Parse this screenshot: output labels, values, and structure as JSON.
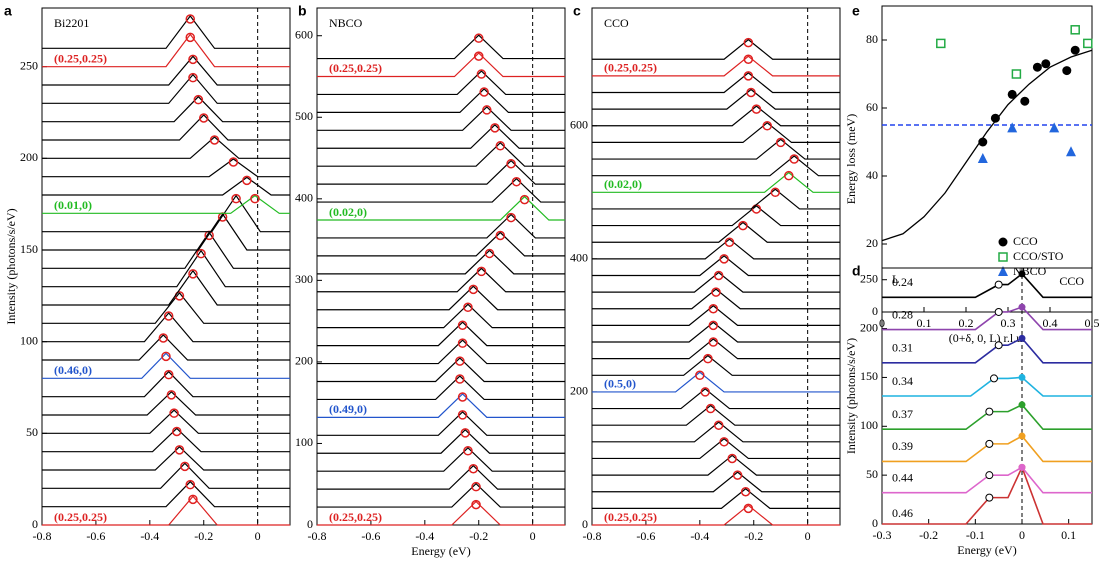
{
  "chart_data": [
    {
      "panel": "a",
      "type": "waterfall",
      "title": "Bi2201",
      "ylabel": "Intensity (photons/s/eV)",
      "xlim": [
        -0.8,
        0.12
      ],
      "ylim": [
        0,
        282
      ],
      "xticks": [
        -0.8,
        -0.6,
        -0.4,
        -0.2,
        0
      ],
      "yticks": [
        0,
        50,
        100,
        150,
        200,
        250
      ],
      "vline": 0,
      "traces": {
        "offsets": [
          0,
          10,
          20,
          30,
          40,
          50,
          60,
          70,
          80,
          90,
          100,
          110,
          120,
          130,
          140,
          150,
          160,
          170,
          180,
          190,
          200,
          210,
          220,
          230,
          240,
          250,
          260
        ],
        "peak_energy": [
          -0.24,
          -0.25,
          -0.27,
          -0.29,
          -0.3,
          -0.31,
          -0.32,
          -0.33,
          -0.34,
          -0.35,
          -0.33,
          -0.29,
          -0.24,
          -0.21,
          -0.18,
          -0.13,
          -0.08,
          -0.01,
          -0.04,
          -0.09,
          -0.16,
          -0.2,
          -0.22,
          -0.24,
          -0.24,
          -0.25,
          -0.25
        ],
        "peak_intensity": [
          14,
          22,
          32,
          41,
          51,
          61,
          71,
          82,
          92,
          102,
          114,
          125,
          137,
          148,
          158,
          168,
          178,
          178,
          188,
          198,
          210,
          222,
          232,
          244,
          254,
          266,
          276
        ],
        "colors": [
          "#dd2222",
          "#000000",
          "#000000",
          "#000000",
          "#000000",
          "#000000",
          "#000000",
          "#000000",
          "#2255cc",
          "#000000",
          "#000000",
          "#000000",
          "#000000",
          "#000000",
          "#000000",
          "#000000",
          "#000000",
          "#22bb22",
          "#000000",
          "#000000",
          "#000000",
          "#000000",
          "#000000",
          "#000000",
          "#000000",
          "#dd2222",
          "#000000"
        ],
        "labels": [
          "(0.25,0.25)",
          null,
          null,
          null,
          null,
          null,
          null,
          null,
          "(0.46,0)",
          null,
          null,
          null,
          null,
          null,
          null,
          null,
          null,
          "(0.01,0)",
          null,
          null,
          null,
          null,
          null,
          null,
          null,
          "(0.25,0.25)",
          null
        ]
      }
    },
    {
      "panel": "b",
      "type": "waterfall",
      "title": "NBCO",
      "xlabel": "Energy (eV)",
      "xlim": [
        -0.8,
        0.12
      ],
      "ylim": [
        0,
        634
      ],
      "xticks": [
        -0.8,
        -0.6,
        -0.4,
        -0.2,
        0
      ],
      "yticks": [
        0,
        100,
        200,
        300,
        400,
        500,
        600
      ],
      "vline": 0,
      "traces": {
        "offsets": [
          0,
          22,
          44,
          66,
          88,
          110,
          132,
          154,
          176,
          198,
          220,
          242,
          264,
          286,
          308,
          330,
          352,
          374,
          396,
          418,
          440,
          462,
          484,
          506,
          528,
          550,
          572
        ],
        "peak_energy": [
          -0.21,
          -0.21,
          -0.22,
          -0.24,
          -0.25,
          -0.26,
          -0.26,
          -0.27,
          -0.27,
          -0.26,
          -0.26,
          -0.24,
          -0.22,
          -0.19,
          -0.16,
          -0.12,
          -0.08,
          -0.03,
          -0.06,
          -0.08,
          -0.12,
          -0.14,
          -0.17,
          -0.18,
          -0.19,
          -0.2,
          -0.2
        ],
        "peak_intensity": [
          25,
          47,
          69,
          91,
          113,
          135,
          157,
          179,
          201,
          223,
          245,
          267,
          289,
          311,
          333,
          355,
          377,
          399,
          421,
          443,
          465,
          487,
          509,
          531,
          553,
          575,
          597
        ],
        "colors": [
          "#dd2222",
          "#000000",
          "#000000",
          "#000000",
          "#000000",
          "#000000",
          "#2255cc",
          "#000000",
          "#000000",
          "#000000",
          "#000000",
          "#000000",
          "#000000",
          "#000000",
          "#000000",
          "#000000",
          "#000000",
          "#22bb22",
          "#000000",
          "#000000",
          "#000000",
          "#000000",
          "#000000",
          "#000000",
          "#000000",
          "#dd2222",
          "#000000"
        ],
        "labels": [
          "(0.25,0.25)",
          null,
          null,
          null,
          null,
          null,
          "(0.49,0)",
          null,
          null,
          null,
          null,
          null,
          null,
          null,
          null,
          null,
          null,
          "(0.02,0)",
          null,
          null,
          null,
          null,
          null,
          null,
          null,
          "(0.25,0.25)",
          null
        ]
      }
    },
    {
      "panel": "c",
      "type": "waterfall",
      "title": "CCO",
      "xlim": [
        -0.8,
        0.12
      ],
      "ylim": [
        0,
        777
      ],
      "xticks": [
        -0.8,
        -0.6,
        -0.4,
        -0.2,
        0
      ],
      "yticks": [
        0,
        200,
        400,
        600
      ],
      "vline": 0,
      "traces": {
        "offsets": [
          0,
          25,
          50,
          75,
          100,
          125,
          150,
          175,
          200,
          225,
          250,
          275,
          300,
          325,
          350,
          375,
          400,
          425,
          450,
          475,
          500,
          525,
          550,
          575,
          600,
          625,
          650,
          675,
          700
        ],
        "peak_energy": [
          -0.22,
          -0.23,
          -0.26,
          -0.28,
          -0.31,
          -0.33,
          -0.36,
          -0.38,
          -0.4,
          -0.37,
          -0.35,
          -0.35,
          -0.35,
          -0.34,
          -0.33,
          -0.31,
          -0.29,
          -0.24,
          -0.19,
          -0.12,
          -0.07,
          -0.05,
          -0.1,
          -0.15,
          -0.19,
          -0.21,
          -0.22,
          -0.22,
          -0.22
        ],
        "peak_intensity": [
          25,
          50,
          75,
          100,
          125,
          150,
          175,
          200,
          225,
          250,
          275,
          300,
          325,
          350,
          375,
          400,
          425,
          450,
          475,
          500,
          525,
          550,
          575,
          600,
          625,
          650,
          675,
          700,
          725
        ],
        "colors": [
          "#dd2222",
          "#000000",
          "#000000",
          "#000000",
          "#000000",
          "#000000",
          "#000000",
          "#000000",
          "#2255cc",
          "#000000",
          "#000000",
          "#000000",
          "#000000",
          "#000000",
          "#000000",
          "#000000",
          "#000000",
          "#000000",
          "#000000",
          "#000000",
          "#22bb22",
          "#000000",
          "#000000",
          "#000000",
          "#000000",
          "#000000",
          "#000000",
          "#dd2222",
          "#000000"
        ],
        "labels": [
          "(0.25,0.25)",
          null,
          null,
          null,
          null,
          null,
          null,
          null,
          "(0.5,0)",
          null,
          null,
          null,
          null,
          null,
          null,
          null,
          null,
          null,
          null,
          null,
          "(0.02,0)",
          null,
          null,
          null,
          null,
          null,
          null,
          "(0.25,0.25)",
          null
        ]
      }
    },
    {
      "panel": "e",
      "type": "scatter",
      "xlabel": "(0+δ, 0, L) r.l.u.",
      "ylabel": "Energy loss (meV)",
      "xlim": [
        0,
        0.5
      ],
      "ylim": [
        0,
        90
      ],
      "xticks": [
        0,
        0.1,
        0.2,
        0.3,
        0.4,
        0.5
      ],
      "yticks": [
        0,
        20,
        40,
        60,
        80
      ],
      "hline": 55,
      "series": [
        {
          "name": "CCO",
          "marker": "circle",
          "color": "#000000",
          "x": [
            0.24,
            0.27,
            0.31,
            0.34,
            0.37,
            0.39,
            0.44,
            0.46
          ],
          "values": [
            50,
            57,
            64,
            62,
            72,
            73,
            71,
            77
          ]
        },
        {
          "name": "CCO/STO",
          "marker": "open-square",
          "color": "#22aa44",
          "x": [
            0.14,
            0.32,
            0.46,
            0.49
          ],
          "values": [
            79,
            70,
            83,
            79
          ]
        },
        {
          "name": "NBCO",
          "marker": "triangle",
          "color": "#2266dd",
          "x": [
            0.24,
            0.31,
            0.41,
            0.45
          ],
          "values": [
            45,
            54,
            54,
            47
          ]
        }
      ],
      "fit": {
        "x": [
          0,
          0.05,
          0.1,
          0.15,
          0.2,
          0.25,
          0.3,
          0.35,
          0.4,
          0.45,
          0.5
        ],
        "values": [
          21,
          23,
          28,
          35,
          44,
          53,
          61,
          67,
          72,
          75,
          77
        ]
      }
    },
    {
      "panel": "d",
      "type": "waterfall-fit",
      "title": "CCO",
      "legend_title": "L",
      "xlabel": "Energy (eV)",
      "ylabel": "Intensity (photons/s/eV)",
      "xlim": [
        -0.3,
        0.15
      ],
      "ylim": [
        0,
        262
      ],
      "xticks": [
        -0.3,
        -0.2,
        -0.1,
        0,
        0.1
      ],
      "yticks": [
        0,
        50,
        100,
        150,
        200,
        250
      ],
      "vline": 0,
      "traces": {
        "labels": [
          "0.46",
          "0.44",
          "0.39",
          "0.37",
          "0.34",
          "0.31",
          "0.28",
          "0.24"
        ],
        "offsets": [
          0,
          32,
          64,
          97,
          131,
          165,
          199,
          232
        ],
        "peak_energy": [
          0,
          0,
          0,
          0,
          0,
          0,
          0,
          0
        ],
        "peak_intensity": [
          58,
          58,
          90,
          122,
          150,
          190,
          222,
          256
        ],
        "magnon_energy": [
          -0.07,
          -0.07,
          -0.07,
          -0.07,
          -0.06,
          -0.05,
          -0.05,
          -0.05
        ],
        "magnon_intensity": [
          27,
          50,
          82,
          115,
          149,
          183,
          217,
          245
        ],
        "colors": [
          "#cc3333",
          "#dd66cc",
          "#f0a020",
          "#2ca02c",
          "#1fb3e0",
          "#2c2ca0",
          "#8e44ad",
          "#000000"
        ]
      }
    }
  ]
}
